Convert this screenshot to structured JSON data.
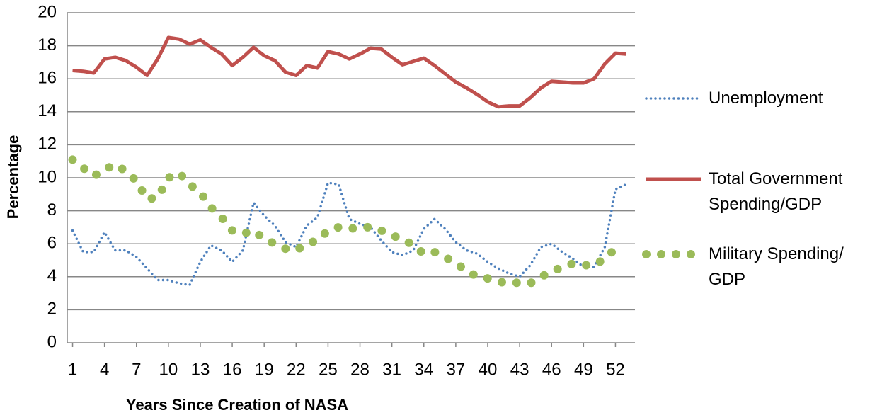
{
  "chart_data": {
    "type": "line",
    "x_label": "Years Since Creation of NASA",
    "y_label": "Percentage",
    "x": [
      1,
      2,
      3,
      4,
      5,
      6,
      7,
      8,
      9,
      10,
      11,
      12,
      13,
      14,
      15,
      16,
      17,
      18,
      19,
      20,
      21,
      22,
      23,
      24,
      25,
      26,
      27,
      28,
      29,
      30,
      31,
      32,
      33,
      34,
      35,
      36,
      37,
      38,
      39,
      40,
      41,
      42,
      43,
      44,
      45,
      46,
      47,
      48,
      49,
      50,
      51,
      52,
      53
    ],
    "xlim": [
      0.5,
      53.5
    ],
    "xticks": [
      1,
      4,
      7,
      10,
      13,
      16,
      19,
      22,
      25,
      28,
      31,
      34,
      37,
      40,
      43,
      46,
      49,
      52
    ],
    "ylim": [
      0,
      20
    ],
    "yticks": [
      0,
      2,
      4,
      6,
      8,
      10,
      12,
      14,
      16,
      18,
      20
    ],
    "grid": true,
    "legend": "right",
    "series": [
      {
        "name": "Unemployment",
        "color": "#4f81bd",
        "dash": "dotted",
        "values": [
          6.8,
          5.5,
          5.5,
          6.7,
          5.6,
          5.6,
          5.2,
          4.5,
          3.8,
          3.8,
          3.6,
          3.5,
          4.9,
          5.9,
          5.6,
          4.9,
          5.6,
          8.5,
          7.7,
          7.1,
          6.1,
          5.8,
          7.1,
          7.6,
          9.7,
          9.6,
          7.5,
          7.2,
          7.0,
          6.2,
          5.5,
          5.3,
          5.6,
          6.9,
          7.5,
          6.9,
          6.1,
          5.6,
          5.4,
          4.9,
          4.5,
          4.2,
          4.0,
          4.7,
          5.8,
          6.0,
          5.5,
          5.1,
          4.6,
          4.6,
          5.8,
          9.3,
          9.6
        ]
      },
      {
        "name": "Total Government Spending/GDP",
        "color": "#c0504d",
        "dash": "solid",
        "values": [
          16.5,
          16.45,
          16.35,
          17.2,
          17.3,
          17.1,
          16.7,
          16.2,
          17.2,
          18.5,
          18.4,
          18.1,
          18.35,
          17.9,
          17.5,
          16.8,
          17.3,
          17.9,
          17.4,
          17.1,
          16.4,
          16.2,
          16.8,
          16.65,
          17.65,
          17.5,
          17.2,
          17.5,
          17.85,
          17.8,
          17.3,
          16.85,
          17.05,
          17.25,
          16.8,
          16.3,
          15.8,
          15.45,
          15.05,
          14.6,
          14.3,
          14.35,
          14.35,
          14.85,
          15.45,
          15.85,
          15.8,
          15.75,
          15.75,
          16.0,
          16.9,
          17.55,
          17.5
        ]
      },
      {
        "name": "Military Spending/ GDP",
        "color": "#9bbb59",
        "dash": "round-dot",
        "values": [
          11.1,
          10.6,
          10.1,
          10.5,
          10.8,
          10.4,
          9.8,
          8.7,
          8.8,
          10.0,
          10.3,
          9.6,
          9.1,
          8.2,
          7.6,
          6.8,
          6.6,
          6.8,
          6.3,
          6.0,
          5.7,
          5.6,
          6.0,
          6.2,
          6.8,
          7.0,
          6.9,
          7.0,
          7.0,
          6.8,
          6.5,
          6.3,
          5.9,
          5.4,
          5.5,
          5.2,
          4.8,
          4.4,
          4.0,
          3.9,
          3.7,
          3.6,
          3.65,
          3.6,
          4.0,
          4.3,
          4.6,
          4.8,
          4.7,
          4.7,
          5.1,
          5.7,
          null
        ]
      }
    ]
  }
}
